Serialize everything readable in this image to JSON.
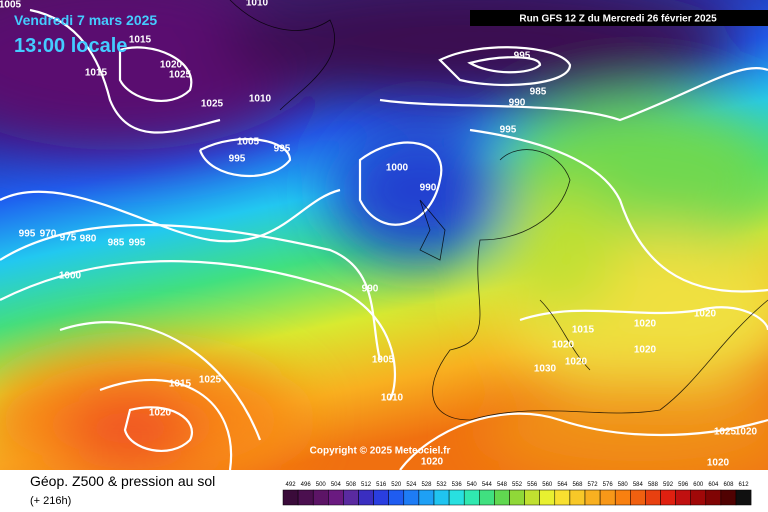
{
  "header": {
    "date": "Vendredi 7 mars 2025",
    "time": "13:00 locale",
    "run": "Run GFS 12 Z du Mercredi 26 février 2025"
  },
  "map": {
    "copyright": "Copyright © 2025 Meteociel.fr",
    "isobar_labels": [
      1005,
      1010,
      1015,
      1020,
      1025,
      1025,
      1010,
      1005,
      995,
      995,
      995,
      985,
      990,
      995,
      1000,
      990,
      995,
      970,
      975,
      980,
      985,
      995,
      1000,
      990,
      1005,
      1010,
      1015,
      1025,
      1020,
      1030,
      1015,
      1020,
      1020,
      1020,
      1020,
      1020,
      1025,
      1020,
      1020,
      1020,
      1015
    ]
  },
  "footer": {
    "title": "Géop. Z500 & pression au sol",
    "lead": "(+ 216h)",
    "scale": [
      492,
      496,
      500,
      504,
      508,
      512,
      516,
      520,
      524,
      528,
      532,
      536,
      540,
      544,
      548,
      552,
      556,
      560,
      564,
      568,
      572,
      576,
      580,
      584,
      588,
      592,
      596,
      600,
      604,
      608,
      612
    ],
    "scale_colors": [
      "#3a0b3a",
      "#4b0f4f",
      "#5c1466",
      "#6a1a80",
      "#5a2aa0",
      "#3a2ec0",
      "#2a3ee0",
      "#1f5cf0",
      "#1e7cf5",
      "#1ea0f5",
      "#20c4f0",
      "#28e0e0",
      "#30e8b0",
      "#40e080",
      "#60d850",
      "#90d838",
      "#c0e030",
      "#e8f030",
      "#f8e030",
      "#f8c828",
      "#f8b020",
      "#f89818",
      "#f88010",
      "#f06010",
      "#e84010",
      "#e02010",
      "#c01010",
      "#a00808",
      "#800404",
      "#500202",
      "#101010"
    ]
  }
}
